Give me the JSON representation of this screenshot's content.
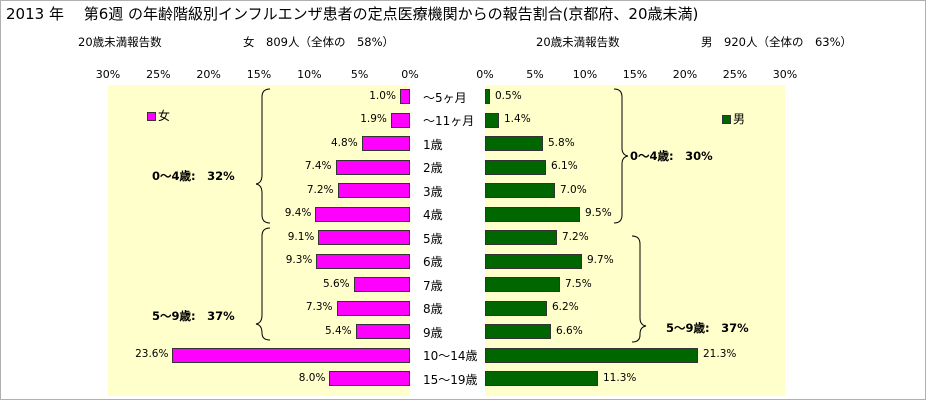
{
  "title": "2013 年　 第6週 の年齢階級別インフルエンザ患者の定点医療機関からの報告割合(京都府、20歳未満)",
  "left_header": {
    "label": "20歳未満報告数",
    "summary": "女　809人（全体の　58%）"
  },
  "right_header": {
    "label": "20歳未満報告数",
    "summary": "男　920人（全体の　63%）"
  },
  "categories": [
    "～5ヶ月",
    "～11ヶ月",
    "1歳",
    "2歳",
    "3歳",
    "4歳",
    "5歳",
    "6歳",
    "7歳",
    "8歳",
    "9歳",
    "10～14歳",
    "15～19歳"
  ],
  "groups": {
    "left_0_4": "0～4歳:　32%",
    "left_5_9": "5～9歳:　37%",
    "right_0_4": "0～4歳:　30%",
    "right_5_9": "5～9歳:　37%"
  },
  "colors": {
    "female": "#ff00ff",
    "male": "#006600",
    "plot_bg": "#ffffcc"
  },
  "chart_data": [
    {
      "type": "bar",
      "orientation": "horizontal",
      "direction": "reversed",
      "legend": "女",
      "categories": [
        "～5ヶ月",
        "～11ヶ月",
        "1歳",
        "2歳",
        "3歳",
        "4歳",
        "5歳",
        "6歳",
        "7歳",
        "8歳",
        "9歳",
        "10～14歳",
        "15～19歳"
      ],
      "values": [
        1.0,
        1.9,
        4.8,
        7.4,
        7.2,
        9.4,
        9.1,
        9.3,
        5.6,
        7.3,
        5.4,
        23.6,
        8.0
      ],
      "value_labels": [
        "1.0%",
        "1.9%",
        "4.8%",
        "7.4%",
        "7.2%",
        "9.4%",
        "9.1%",
        "9.3%",
        "5.6%",
        "7.3%",
        "5.4%",
        "23.6%",
        "8.0%"
      ],
      "xlim": [
        0,
        30
      ],
      "ticks": [
        "30%",
        "25%",
        "20%",
        "15%",
        "10%",
        "5%",
        "0%"
      ]
    },
    {
      "type": "bar",
      "orientation": "horizontal",
      "legend": "男",
      "categories": [
        "～5ヶ月",
        "～11ヶ月",
        "1歳",
        "2歳",
        "3歳",
        "4歳",
        "5歳",
        "6歳",
        "7歳",
        "8歳",
        "9歳",
        "10～14歳",
        "15～19歳"
      ],
      "values": [
        0.5,
        1.4,
        5.8,
        6.1,
        7.0,
        9.5,
        7.2,
        9.7,
        7.5,
        6.2,
        6.6,
        21.3,
        11.3
      ],
      "value_labels": [
        "0.5%",
        "1.4%",
        "5.8%",
        "6.1%",
        "7.0%",
        "9.5%",
        "7.2%",
        "9.7%",
        "7.5%",
        "6.2%",
        "6.6%",
        "21.3%",
        "11.3%"
      ],
      "xlim": [
        0,
        30
      ],
      "ticks": [
        "0%",
        "5%",
        "10%",
        "15%",
        "20%",
        "25%",
        "30%"
      ]
    }
  ]
}
